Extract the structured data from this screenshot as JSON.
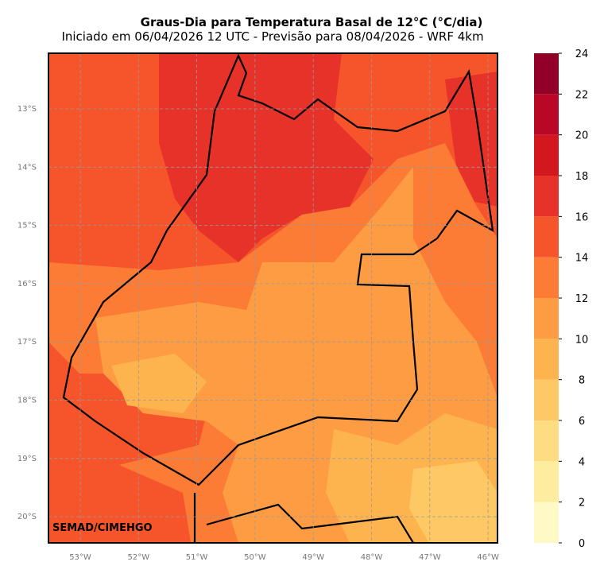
{
  "header": {
    "title": "Graus-Dia para Temperatura Basal de 12°C (°C/dia)",
    "subtitle": "Iniciado em 06/04/2026 12 UTC - Previsão para 08/04/2026 - WRF 4km"
  },
  "map": {
    "credit": "SEMAD/CIMEHGO",
    "lat_labels": [
      "13°S",
      "14°S",
      "15°S",
      "16°S",
      "17°S",
      "18°S",
      "19°S",
      "20°S"
    ],
    "lon_labels": [
      "53°W",
      "52°W",
      "51°W",
      "50°W",
      "49°W",
      "48°W",
      "47°W",
      "46°W"
    ]
  },
  "colorbar": {
    "ticks": [
      0,
      2,
      4,
      6,
      8,
      10,
      12,
      14,
      16,
      18,
      20,
      22,
      24
    ],
    "colors": [
      "#fff9c6",
      "#ffed9f",
      "#fedd82",
      "#fec965",
      "#feb44e",
      "#fd9c43",
      "#fc7c36",
      "#f6552b",
      "#e7322a",
      "#d3171f",
      "#b90826",
      "#930027"
    ]
  }
}
